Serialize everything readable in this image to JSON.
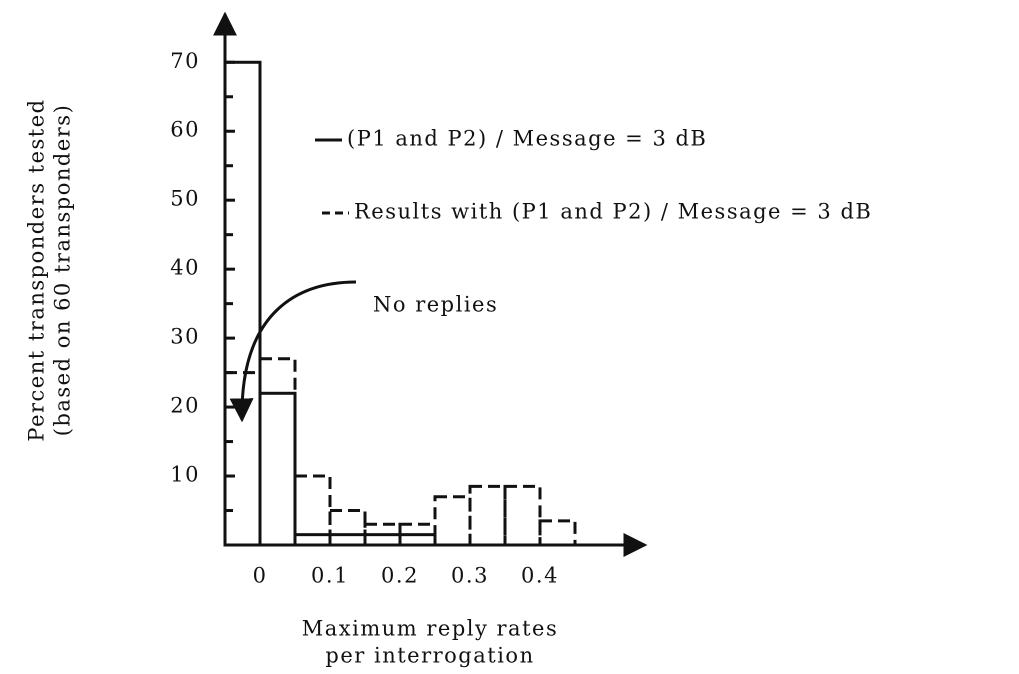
{
  "chart_data": {
    "type": "histogram",
    "xlabel": [
      "Maximum reply rates",
      "per interrogation"
    ],
    "ylabel": [
      "Percent transponders tested",
      "(based on 60 transponders)"
    ],
    "annotation": "No replies",
    "xlim": [
      -0.05,
      0.55
    ],
    "ylim": [
      0,
      77
    ],
    "xticks": [
      0,
      0.1,
      0.2,
      0.3,
      0.4
    ],
    "yticks": [
      10,
      20,
      30,
      40,
      50,
      60,
      70
    ],
    "yminorticks": [
      5,
      15,
      25,
      35,
      45,
      55,
      65
    ],
    "series": [
      {
        "name": "(P1 and P2) / Message = 3 dB",
        "color": "#111111",
        "style": "solid",
        "bins": [
          -0.05,
          0,
          0.05,
          0.1,
          0.15,
          0.2,
          0.25
        ],
        "counts": [
          70,
          22,
          1.5,
          1.5,
          1.5,
          1.5
        ]
      },
      {
        "name": "Results with (P1 and P2) / Message = 3 dB",
        "color": "#111111",
        "style": "dashed",
        "bins": [
          -0.05,
          0,
          0.05,
          0.1,
          0.15,
          0.2,
          0.25,
          0.3,
          0.35,
          0.4,
          0.45
        ],
        "counts": [
          25,
          27,
          10,
          5,
          3,
          3,
          7,
          8.5,
          8.5,
          3.5
        ]
      }
    ]
  }
}
